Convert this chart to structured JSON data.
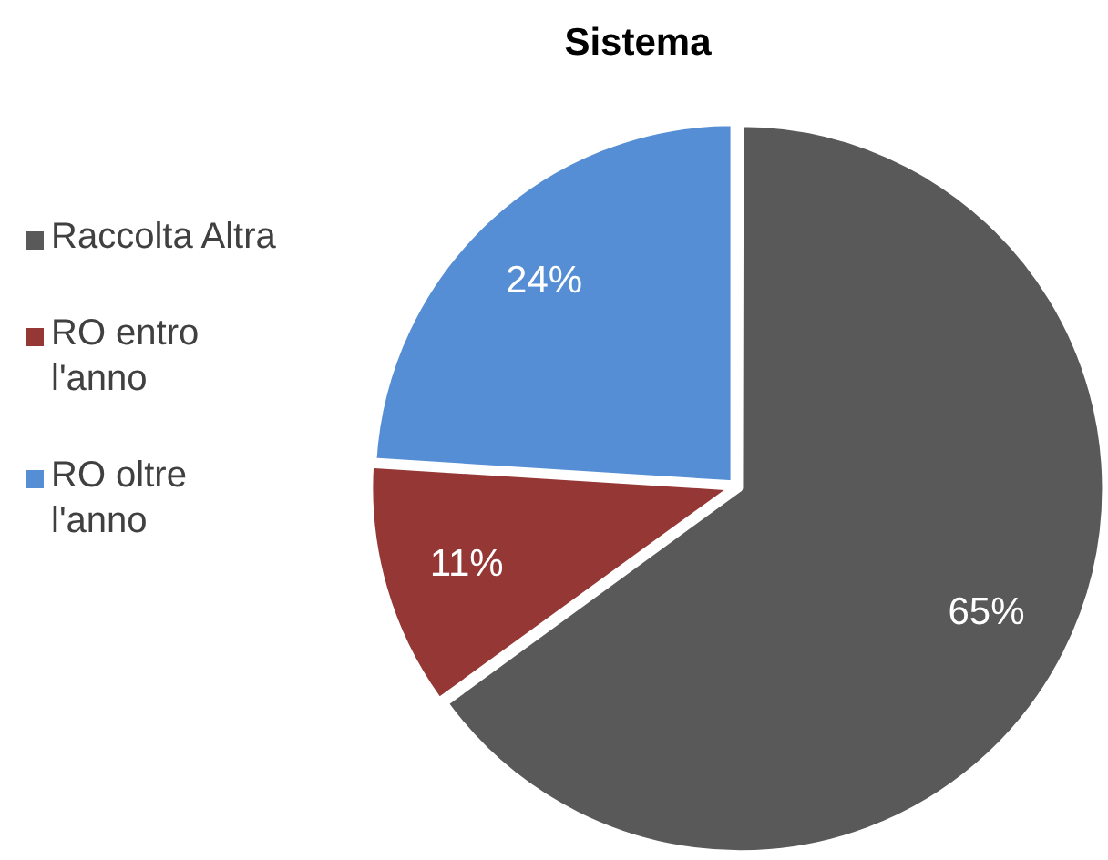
{
  "chart_data": {
    "type": "pie",
    "title": "Sistema",
    "categories": [
      "Raccolta Altra",
      "RO entro l'anno",
      "RO oltre l'anno"
    ],
    "values": [
      65,
      11,
      24
    ],
    "colors": [
      "#595959",
      "#953735",
      "#558ed5"
    ],
    "value_labels": [
      "65%",
      "11%",
      "24%"
    ],
    "legend": "left"
  }
}
